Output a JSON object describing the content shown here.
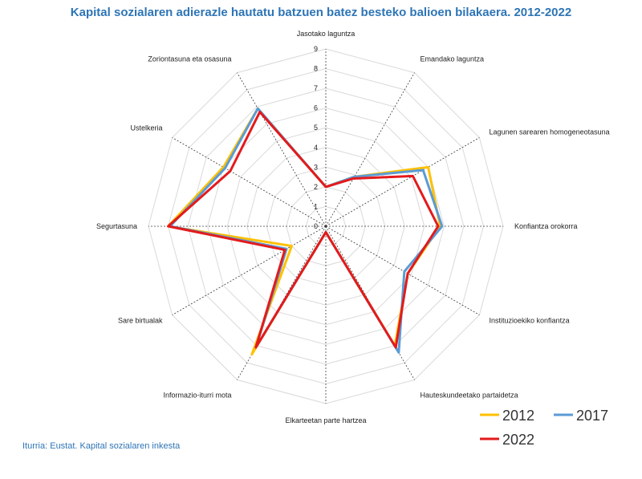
{
  "title": "Kapital sozialaren adierazle hautatu batzuen batez besteko balioen bilakaera. 2012-2022",
  "source": "Iturria: Eustat. Kapital sozialaren inkesta",
  "chart_data": {
    "type": "radar",
    "title": "Kapital sozialaren adierazle hautatu batzuen batez besteko balioen bilakaera. 2012-2022",
    "categories": [
      "Jasotako laguntza",
      "Emandako laguntza",
      "Lagunen sarearen homogeneotasuna",
      "Konfiantza orokorra",
      "Instituzioekiko konfiantza",
      "Hauteskundeetako partaidetza",
      "Elkarteetan parte hartzea",
      "Informazio-iturri mota",
      "Sare birtualak",
      "Segurtasuna",
      "Ustelkeria",
      "Zoriontasuna eta osasuna"
    ],
    "rlim": [
      0,
      9
    ],
    "ticks": [
      "0",
      "1",
      "2",
      "3",
      "4",
      "5",
      "6",
      "7",
      "8",
      "9"
    ],
    "grid": true,
    "legend_position": "bottom-right",
    "series": [
      {
        "name": "2012",
        "color": "#FFC000",
        "values": [
          2.0,
          2.9,
          6.0,
          5.8,
          4.8,
          7.0,
          0.3,
          7.5,
          2.0,
          8.0,
          6.0,
          6.9
        ]
      },
      {
        "name": "2017",
        "color": "#5B9BD5",
        "values": [
          2.0,
          2.9,
          5.7,
          5.9,
          4.6,
          7.4,
          0.3,
          7.1,
          2.3,
          7.9,
          5.9,
          6.9
        ]
      },
      {
        "name": "2022",
        "color": "#E31A1C",
        "values": [
          2.0,
          2.8,
          5.1,
          5.7,
          4.8,
          7.1,
          0.3,
          7.1,
          2.4,
          8.0,
          5.6,
          6.7
        ]
      }
    ]
  }
}
